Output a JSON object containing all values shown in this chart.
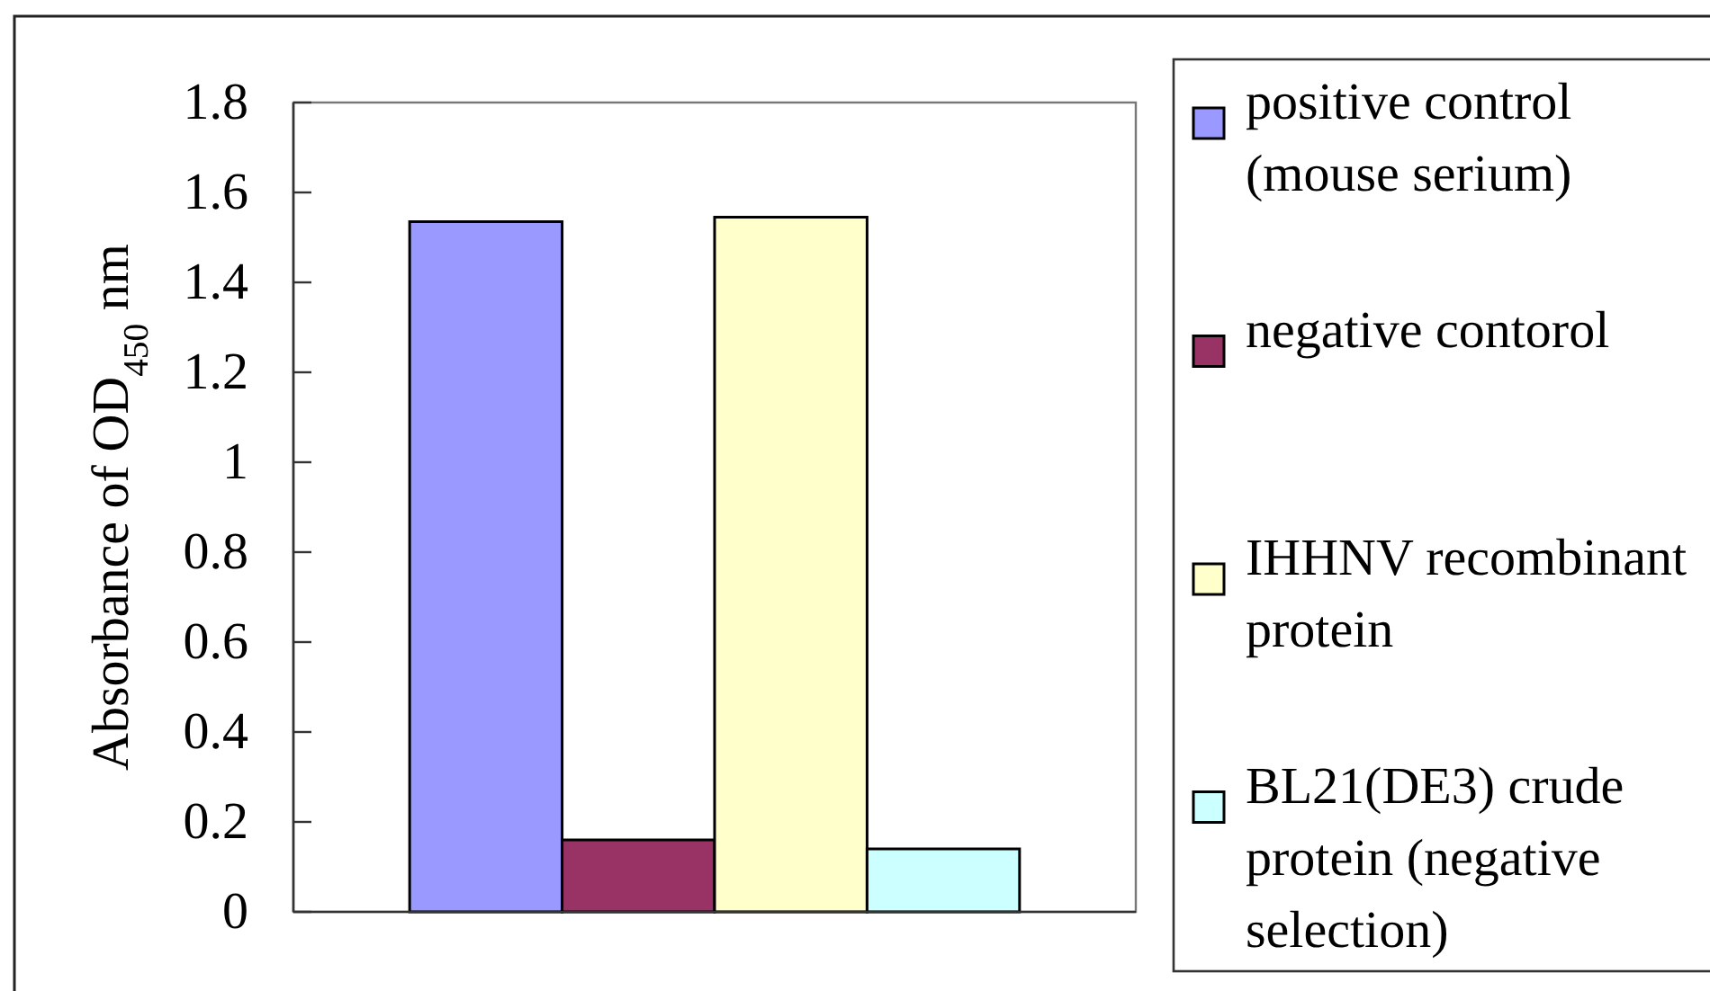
{
  "chart_data": {
    "type": "bar",
    "ylabel": "Absorbance of OD$_{450}$ nm",
    "categories": [
      null
    ],
    "series": [
      {
        "name": "positive control (mouse serium)",
        "color": "#9999ff",
        "values": [
          1.535
        ]
      },
      {
        "name": "negative contorol",
        "color": "#993366",
        "values": [
          0.16
        ]
      },
      {
        "name": "IHHNV recombinant protein",
        "color": "#ffffcc",
        "values": [
          1.545
        ]
      },
      {
        "name": "BL21(DE3) crude protein (negative selection)",
        "color": "#ccffff",
        "values": [
          0.14
        ]
      }
    ],
    "ylim": [
      0,
      1.8
    ],
    "yticks": [
      0,
      0.2,
      0.4,
      0.6,
      0.8,
      1,
      1.2,
      1.4,
      1.6,
      1.8
    ],
    "legend": "right"
  }
}
